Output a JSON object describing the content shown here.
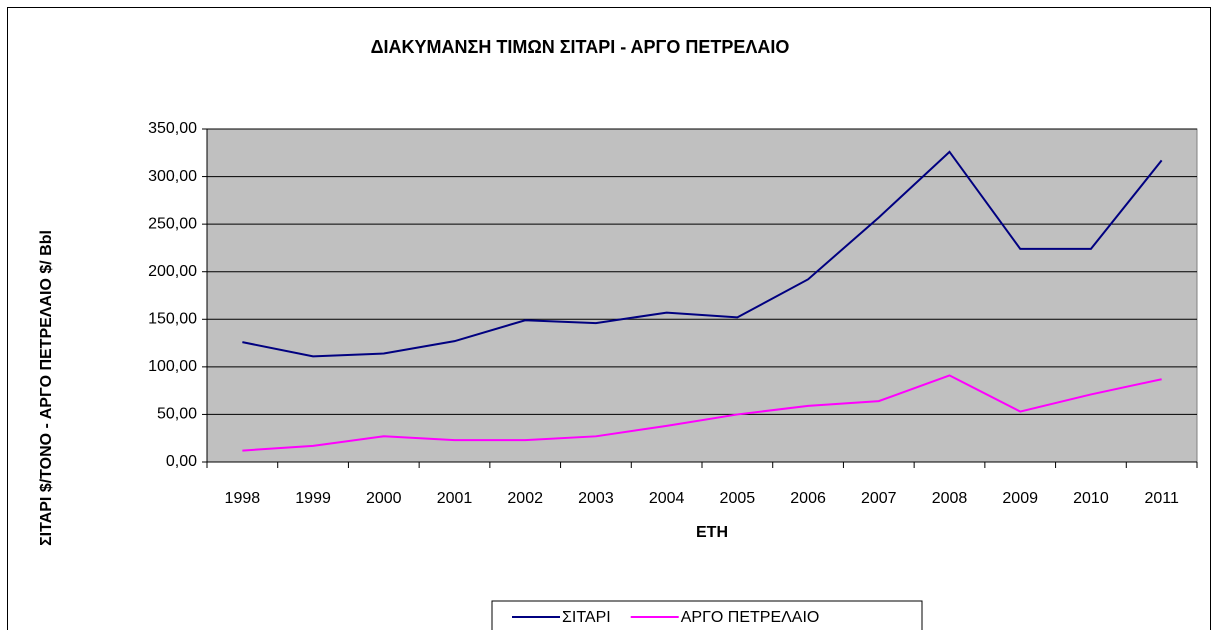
{
  "chart_data": {
    "type": "line",
    "title": "ΔΙΑΚΥΜΑΝΣΗ ΤΙΜΩΝ ΣΙΤΑΡΙ - ΑΡΓΟ ΠΕΤΡΕΛΑΙΟ",
    "x_label": "ΕΤΗ",
    "y_label": "ΣΙΤΑΡΙ $/ΤΟΝΟ - ΑΡΓΟ ΠΕΤΡΕΛΑΙΟ $/ Bbl",
    "categories": [
      "1998",
      "1999",
      "2000",
      "2001",
      "2002",
      "2003",
      "2004",
      "2005",
      "2006",
      "2007",
      "2008",
      "2009",
      "2010",
      "2011"
    ],
    "series": [
      {
        "name": "ΣΙΤΑΡΙ",
        "color": "#000080",
        "values": [
          126,
          111,
          114,
          127,
          149,
          146,
          157,
          152,
          192,
          257,
          326,
          224,
          224,
          317
        ]
      },
      {
        "name": "ΑΡΓΟ ΠΕΤΡΕΛΑΙΟ",
        "color": "#ff00ff",
        "values": [
          12,
          17,
          27,
          23,
          23,
          27,
          38,
          50,
          59,
          64,
          91,
          53,
          71,
          87
        ]
      }
    ],
    "ylim": [
      0,
      350
    ],
    "yticks": [
      {
        "value": 0,
        "label": "0,00"
      },
      {
        "value": 50,
        "label": "50,00"
      },
      {
        "value": 100,
        "label": "100,00"
      },
      {
        "value": 150,
        "label": "150,00"
      },
      {
        "value": 200,
        "label": "200,00"
      },
      {
        "value": 250,
        "label": "250,00"
      },
      {
        "value": 300,
        "label": "300,00"
      },
      {
        "value": 350,
        "label": "350,00"
      }
    ],
    "grid": true,
    "legend": "bottom"
  }
}
